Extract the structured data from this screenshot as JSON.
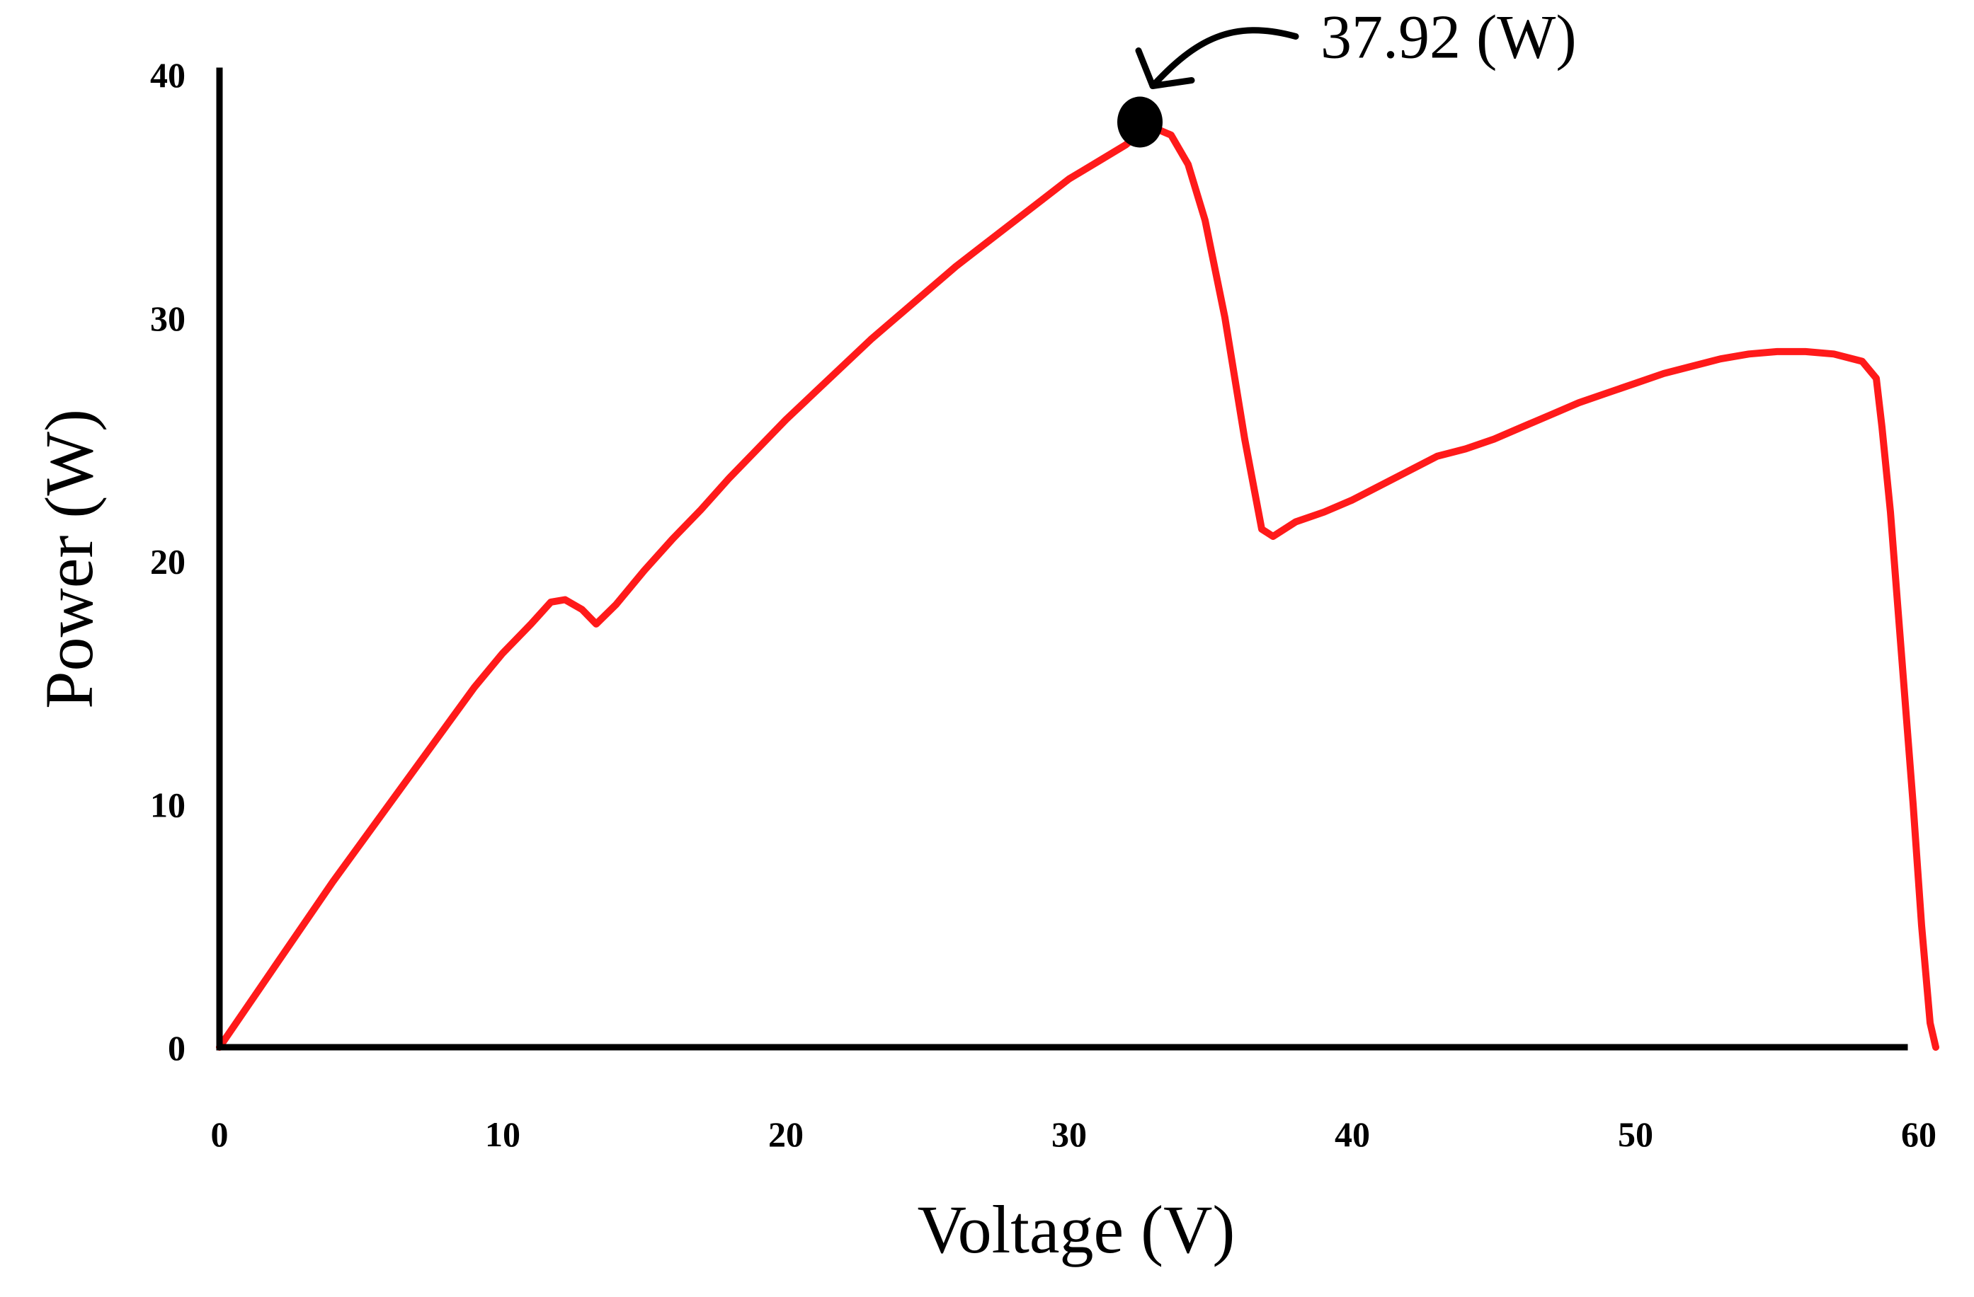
{
  "chart_data": {
    "type": "line",
    "title": "",
    "xlabel": "Voltage (V)",
    "ylabel": "Power (W)",
    "xlim": [
      0,
      60
    ],
    "ylim": [
      0,
      40
    ],
    "x_ticks": [
      "0",
      "10",
      "20",
      "30",
      "40",
      "50",
      "60"
    ],
    "y_ticks": [
      "0",
      "10",
      "20",
      "30",
      "40"
    ],
    "grid": false,
    "legend": "none",
    "series": [
      {
        "color": "#ff1a1a",
        "points": [
          [
            0,
            0
          ],
          [
            1,
            1.7
          ],
          [
            2,
            3.4
          ],
          [
            3,
            5.1
          ],
          [
            4,
            6.8
          ],
          [
            5,
            8.4
          ],
          [
            6,
            10.0
          ],
          [
            7,
            11.6
          ],
          [
            8,
            13.2
          ],
          [
            9,
            14.8
          ],
          [
            10,
            16.2
          ],
          [
            11,
            17.4
          ],
          [
            11.7,
            18.3
          ],
          [
            12.2,
            18.4
          ],
          [
            12.8,
            18.0
          ],
          [
            13.3,
            17.4
          ],
          [
            14,
            18.2
          ],
          [
            15,
            19.6
          ],
          [
            16,
            20.9
          ],
          [
            17,
            22.1
          ],
          [
            18,
            23.4
          ],
          [
            19,
            24.6
          ],
          [
            20,
            25.8
          ],
          [
            21,
            26.9
          ],
          [
            22,
            28.0
          ],
          [
            23,
            29.1
          ],
          [
            24,
            30.1
          ],
          [
            25,
            31.1
          ],
          [
            26,
            32.1
          ],
          [
            27,
            33.0
          ],
          [
            28,
            33.9
          ],
          [
            29,
            34.8
          ],
          [
            30,
            35.7
          ],
          [
            31,
            36.4
          ],
          [
            32,
            37.1
          ],
          [
            32.5,
            37.6
          ],
          [
            33,
            37.8
          ],
          [
            33.6,
            37.5
          ],
          [
            34.2,
            36.3
          ],
          [
            34.8,
            34.0
          ],
          [
            35.5,
            30.0
          ],
          [
            36.2,
            25.0
          ],
          [
            36.8,
            21.3
          ],
          [
            37.2,
            21.0
          ],
          [
            38,
            21.6
          ],
          [
            39,
            22.0
          ],
          [
            40,
            22.5
          ],
          [
            41,
            23.1
          ],
          [
            42,
            23.7
          ],
          [
            43,
            24.3
          ],
          [
            44,
            24.6
          ],
          [
            45,
            25.0
          ],
          [
            46,
            25.5
          ],
          [
            47,
            26.0
          ],
          [
            48,
            26.5
          ],
          [
            49,
            26.9
          ],
          [
            50,
            27.3
          ],
          [
            51,
            27.7
          ],
          [
            52,
            28.0
          ],
          [
            53,
            28.3
          ],
          [
            54,
            28.5
          ],
          [
            55,
            28.6
          ],
          [
            56,
            28.6
          ],
          [
            57,
            28.5
          ],
          [
            58,
            28.2
          ],
          [
            58.5,
            27.5
          ],
          [
            58.7,
            25.5
          ],
          [
            59,
            22.0
          ],
          [
            59.4,
            16.0
          ],
          [
            59.8,
            10.0
          ],
          [
            60.1,
            5.0
          ],
          [
            60.4,
            1.0
          ],
          [
            60.6,
            0
          ]
        ]
      }
    ],
    "annotations": [
      {
        "text": "37.92 (W)",
        "x": 32.5,
        "y": 37.92
      }
    ]
  }
}
